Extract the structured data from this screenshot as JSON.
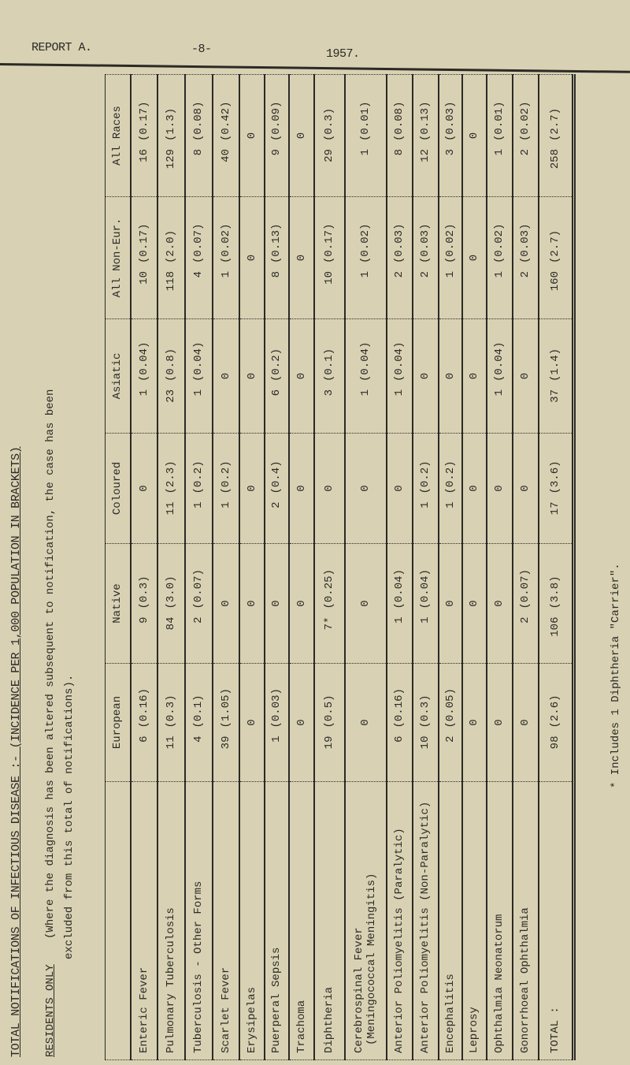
{
  "header": {
    "report": "REPORT A.",
    "page": "-8-",
    "year": "1957."
  },
  "title": "TOTAL NOTIFICATIONS OF INFECTIOUS DISEASE :- (INCIDENCE PER 1,000 POPULATION IN BRACKETS)",
  "subtitle": "RESIDENTS ONLY",
  "note_line1": "(Where the diagnosis has been altered subsequent to notification, the case has been",
  "note_line2": "excluded from this total of notifications).",
  "columns": [
    "European",
    "Native",
    "Coloured",
    "Asiatic",
    "All Non-Eur.",
    "All Races"
  ],
  "rows": [
    {
      "label": "Enteric Fever",
      "cells": [
        [
          "6",
          "(0.16)"
        ],
        [
          "9",
          "(0.3)"
        ],
        [
          "0",
          ""
        ],
        [
          "1",
          "(0.04)"
        ],
        [
          "10",
          "(0.17)"
        ],
        [
          "16",
          "(0.17)"
        ]
      ]
    },
    {
      "label": "Pulmonary Tuberculosis",
      "cells": [
        [
          "11",
          "(0.3)"
        ],
        [
          "84",
          "(3.0)"
        ],
        [
          "11",
          "(2.3)"
        ],
        [
          "23",
          "(0.8)"
        ],
        [
          "118",
          "(2.0)"
        ],
        [
          "129",
          "(1.3)"
        ]
      ]
    },
    {
      "label": "Tuberculosis - Other Forms",
      "cells": [
        [
          "4",
          "(0.1)"
        ],
        [
          "2",
          "(0.07)"
        ],
        [
          "1",
          "(0.2)"
        ],
        [
          "1",
          "(0.04)"
        ],
        [
          "4",
          "(0.07)"
        ],
        [
          "8",
          "(0.08)"
        ]
      ]
    },
    {
      "label": "Scarlet Fever",
      "cells": [
        [
          "39",
          "(1.05)"
        ],
        [
          "0",
          ""
        ],
        [
          "1",
          "(0.2)"
        ],
        [
          "0",
          ""
        ],
        [
          "1",
          "(0.02)"
        ],
        [
          "40",
          "(0.42)"
        ]
      ]
    },
    {
      "label": "Erysipelas",
      "cells": [
        [
          "0",
          ""
        ],
        [
          "0",
          ""
        ],
        [
          "0",
          ""
        ],
        [
          "0",
          ""
        ],
        [
          "0",
          ""
        ],
        [
          "0",
          ""
        ]
      ]
    },
    {
      "label": "Puerperal Sepsis",
      "cells": [
        [
          "1",
          "(0.03)"
        ],
        [
          "0",
          ""
        ],
        [
          "2",
          "(0.4)"
        ],
        [
          "6",
          "(0.2)"
        ],
        [
          "8",
          "(0.13)"
        ],
        [
          "9",
          "(0.09)"
        ]
      ]
    },
    {
      "label": "Trachoma",
      "cells": [
        [
          "0",
          ""
        ],
        [
          "0",
          ""
        ],
        [
          "0",
          ""
        ],
        [
          "0",
          ""
        ],
        [
          "0",
          ""
        ],
        [
          "0",
          ""
        ]
      ]
    },
    {
      "label": "Diphtheria",
      "cells": [
        [
          "19",
          "(0.5)"
        ],
        [
          "7*",
          "(0.25)"
        ],
        [
          "0",
          ""
        ],
        [
          "3",
          "(0.1)"
        ],
        [
          "10",
          "(0.17)"
        ],
        [
          "29",
          "(0.3)"
        ]
      ]
    },
    {
      "label": "Cerebrospinal Fever",
      "label2": "(Meningococcal Meningitis)",
      "cells": [
        [
          "0",
          ""
        ],
        [
          "0",
          ""
        ],
        [
          "0",
          ""
        ],
        [
          "1",
          "(0.04)"
        ],
        [
          "1",
          "(0.02)"
        ],
        [
          "1",
          "(0.01)"
        ]
      ]
    },
    {
      "label": "Anterior Poliomyelitis (Paralytic)",
      "cells": [
        [
          "6",
          "(0.16)"
        ],
        [
          "1",
          "(0.04)"
        ],
        [
          "0",
          ""
        ],
        [
          "1",
          "(0.04)"
        ],
        [
          "2",
          "(0.03)"
        ],
        [
          "8",
          "(0.08)"
        ]
      ]
    },
    {
      "label": "Anterior Poliomyelitis (Non-Paralytic)",
      "cells": [
        [
          "10",
          "(0.3)"
        ],
        [
          "1",
          "(0.04)"
        ],
        [
          "1",
          "(0.2)"
        ],
        [
          "0",
          ""
        ],
        [
          "2",
          "(0.03)"
        ],
        [
          "12",
          "(0.13)"
        ]
      ]
    },
    {
      "label": "Encephalitis",
      "cells": [
        [
          "2",
          "(0.05)"
        ],
        [
          "0",
          ""
        ],
        [
          "1",
          "(0.2)"
        ],
        [
          "0",
          ""
        ],
        [
          "1",
          "(0.02)"
        ],
        [
          "3",
          "(0.03)"
        ]
      ]
    },
    {
      "label": "Leprosy",
      "cells": [
        [
          "0",
          ""
        ],
        [
          "0",
          ""
        ],
        [
          "0",
          ""
        ],
        [
          "0",
          ""
        ],
        [
          "0",
          ""
        ],
        [
          "0",
          ""
        ]
      ]
    },
    {
      "label": "Ophthalmia Neonatorum",
      "cells": [
        [
          "0",
          ""
        ],
        [
          "0",
          ""
        ],
        [
          "0",
          ""
        ],
        [
          "1",
          "(0.04)"
        ],
        [
          "1",
          "(0.02)"
        ],
        [
          "1",
          "(0.01)"
        ]
      ]
    },
    {
      "label": "Gonorrhoeal Ophthalmia",
      "cells": [
        [
          "0",
          ""
        ],
        [
          "2",
          "(0.07)"
        ],
        [
          "0",
          ""
        ],
        [
          "0",
          ""
        ],
        [
          "2",
          "(0.03)"
        ],
        [
          "2",
          "(0.02)"
        ]
      ]
    },
    {
      "label": "TOTAL  :",
      "cells": [
        [
          "98",
          "(2.6)"
        ],
        [
          "106",
          "(3.8)"
        ],
        [
          "17",
          "(3.6)"
        ],
        [
          "37",
          "(1.4)"
        ],
        [
          "160",
          "(2.7)"
        ],
        [
          "258",
          "(2.7)"
        ]
      ]
    }
  ],
  "footnote": "* Includes 1 Diphtheria \"Carrier\"."
}
